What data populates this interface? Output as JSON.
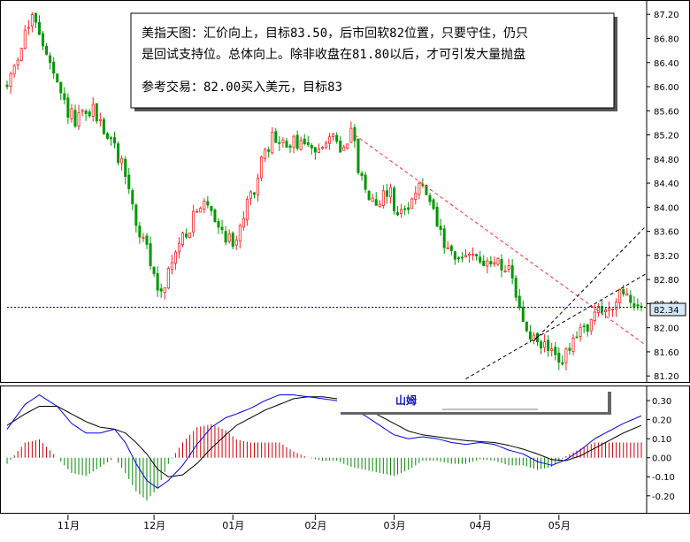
{
  "chart_data": [
    {
      "type": "candlestick",
      "title": "",
      "ylim": [
        81.1,
        87.35
      ],
      "y_ticks": [
        "87.20",
        "86.80",
        "86.40",
        "86.00",
        "85.60",
        "85.20",
        "84.80",
        "84.40",
        "84.00",
        "83.60",
        "83.20",
        "82.80",
        "82.40",
        "82.00",
        "81.60",
        "81.20"
      ],
      "current_price_label": "82.34",
      "current_price": 82.34,
      "candle_count": 178,
      "months": [
        "11月",
        "12月",
        "01月",
        "02月",
        "03月",
        "04月",
        "05月"
      ],
      "month_positions": [
        17,
        41,
        63,
        86,
        108,
        132,
        154
      ],
      "trend_points": [
        [
          0,
          86.0
        ],
        [
          5,
          86.9
        ],
        [
          8,
          87.15
        ],
        [
          11,
          86.5
        ],
        [
          15,
          85.8
        ],
        [
          19,
          85.4
        ],
        [
          24,
          85.6
        ],
        [
          28,
          85.2
        ],
        [
          33,
          84.6
        ],
        [
          36,
          83.7
        ],
        [
          39,
          83.3
        ],
        [
          42,
          82.6
        ],
        [
          45,
          82.9
        ],
        [
          48,
          83.4
        ],
        [
          52,
          83.8
        ],
        [
          56,
          84.1
        ],
        [
          60,
          83.6
        ],
        [
          63,
          83.4
        ],
        [
          67,
          84.0
        ],
        [
          71,
          84.7
        ],
        [
          74,
          85.15
        ],
        [
          78,
          85.0
        ],
        [
          82,
          85.1
        ],
        [
          85,
          84.9
        ],
        [
          89,
          85.2
        ],
        [
          93,
          85.0
        ],
        [
          96,
          85.25
        ],
        [
          99,
          84.4
        ],
        [
          103,
          84.1
        ],
        [
          107,
          84.3
        ],
        [
          109,
          83.8
        ],
        [
          113,
          84.2
        ],
        [
          116,
          84.35
        ],
        [
          120,
          83.7
        ],
        [
          123,
          83.2
        ],
        [
          126,
          83.1
        ],
        [
          130,
          83.3
        ],
        [
          134,
          83.0
        ],
        [
          137,
          83.15
        ],
        [
          140,
          82.9
        ],
        [
          143,
          82.3
        ],
        [
          146,
          81.8
        ],
        [
          150,
          81.7
        ],
        [
          154,
          81.45
        ],
        [
          157,
          81.6
        ],
        [
          160,
          81.95
        ],
        [
          164,
          82.2
        ],
        [
          168,
          82.35
        ],
        [
          171,
          82.5
        ],
        [
          174,
          82.45
        ],
        [
          177,
          82.34
        ]
      ],
      "lines": [
        {
          "name": "",
          "kind": "resistance",
          "color": "#ff3030",
          "style": "dashed",
          "from": [
            97,
            85.2
          ],
          "to": [
            182,
            81.7
          ]
        },
        {
          "name": "",
          "kind": "channel-upper",
          "color": "#000000",
          "style": "dashed",
          "from": [
            147,
            81.78
          ],
          "to": [
            190,
            83.7
          ]
        },
        {
          "name": "",
          "kind": "channel-lower",
          "color": "#000000",
          "style": "dashed",
          "from": [
            128,
            81.15
          ],
          "to": [
            190,
            82.9
          ]
        },
        {
          "name": "",
          "kind": "current-price",
          "color": "#0000cc",
          "style": "dotted",
          "from": [
            0,
            82.34
          ],
          "to": [
            190,
            82.34
          ]
        }
      ],
      "note": {
        "lines": [
          "美指天图：汇价向上，目标83.50，后市回软82位置，只要守住，仍只",
          "是回试支持位。总体向上。除非收盘在81.80以后，才可引发大量抛盘",
          "",
          "参考交易：82.00买入美元，目标83"
        ]
      }
    },
    {
      "type": "macd",
      "title": "",
      "ylim": [
        -0.28,
        0.37
      ],
      "y_ticks": [
        "0.30",
        "0.20",
        "0.10",
        "0.00",
        "-0.10",
        "-0.20"
      ],
      "legend_label": "山姆",
      "macd_points": [
        [
          0,
          0.15
        ],
        [
          5,
          0.28
        ],
        [
          9,
          0.33
        ],
        [
          14,
          0.27
        ],
        [
          18,
          0.18
        ],
        [
          22,
          0.13
        ],
        [
          26,
          0.13
        ],
        [
          30,
          0.15
        ],
        [
          33,
          0.08
        ],
        [
          36,
          -0.03
        ],
        [
          39,
          -0.12
        ],
        [
          42,
          -0.16
        ],
        [
          45,
          -0.12
        ],
        [
          49,
          -0.04
        ],
        [
          53,
          0.07
        ],
        [
          57,
          0.16
        ],
        [
          61,
          0.21
        ],
        [
          64,
          0.23
        ],
        [
          68,
          0.26
        ],
        [
          72,
          0.3
        ],
        [
          76,
          0.33
        ],
        [
          80,
          0.33
        ],
        [
          84,
          0.32
        ],
        [
          88,
          0.31
        ],
        [
          92,
          0.3
        ],
        [
          96,
          0.26
        ],
        [
          100,
          0.22
        ],
        [
          104,
          0.17
        ],
        [
          108,
          0.12
        ],
        [
          112,
          0.1
        ],
        [
          116,
          0.11
        ],
        [
          120,
          0.1
        ],
        [
          124,
          0.08
        ],
        [
          128,
          0.07
        ],
        [
          132,
          0.08
        ],
        [
          136,
          0.07
        ],
        [
          140,
          0.04
        ],
        [
          144,
          0.02
        ],
        [
          148,
          -0.02
        ],
        [
          152,
          -0.04
        ],
        [
          156,
          -0.01
        ],
        [
          160,
          0.04
        ],
        [
          164,
          0.1
        ],
        [
          168,
          0.14
        ],
        [
          172,
          0.18
        ],
        [
          177,
          0.22
        ]
      ],
      "signal_points": [
        [
          0,
          0.17
        ],
        [
          5,
          0.23
        ],
        [
          9,
          0.27
        ],
        [
          14,
          0.27
        ],
        [
          18,
          0.23
        ],
        [
          22,
          0.19
        ],
        [
          26,
          0.16
        ],
        [
          30,
          0.15
        ],
        [
          33,
          0.13
        ],
        [
          36,
          0.08
        ],
        [
          39,
          0.02
        ],
        [
          42,
          -0.06
        ],
        [
          45,
          -0.1
        ],
        [
          49,
          -0.09
        ],
        [
          53,
          -0.03
        ],
        [
          57,
          0.05
        ],
        [
          61,
          0.12
        ],
        [
          64,
          0.17
        ],
        [
          68,
          0.21
        ],
        [
          72,
          0.25
        ],
        [
          76,
          0.28
        ],
        [
          80,
          0.31
        ],
        [
          84,
          0.32
        ],
        [
          88,
          0.32
        ],
        [
          92,
          0.31
        ],
        [
          96,
          0.29
        ],
        [
          100,
          0.26
        ],
        [
          104,
          0.22
        ],
        [
          108,
          0.18
        ],
        [
          112,
          0.14
        ],
        [
          116,
          0.12
        ],
        [
          120,
          0.11
        ],
        [
          124,
          0.1
        ],
        [
          128,
          0.09
        ],
        [
          132,
          0.085
        ],
        [
          136,
          0.08
        ],
        [
          140,
          0.065
        ],
        [
          144,
          0.045
        ],
        [
          148,
          0.02
        ],
        [
          152,
          -0.01
        ],
        [
          156,
          -0.015
        ],
        [
          160,
          0.01
        ],
        [
          164,
          0.05
        ],
        [
          168,
          0.09
        ],
        [
          172,
          0.13
        ],
        [
          177,
          0.17
        ]
      ]
    }
  ]
}
